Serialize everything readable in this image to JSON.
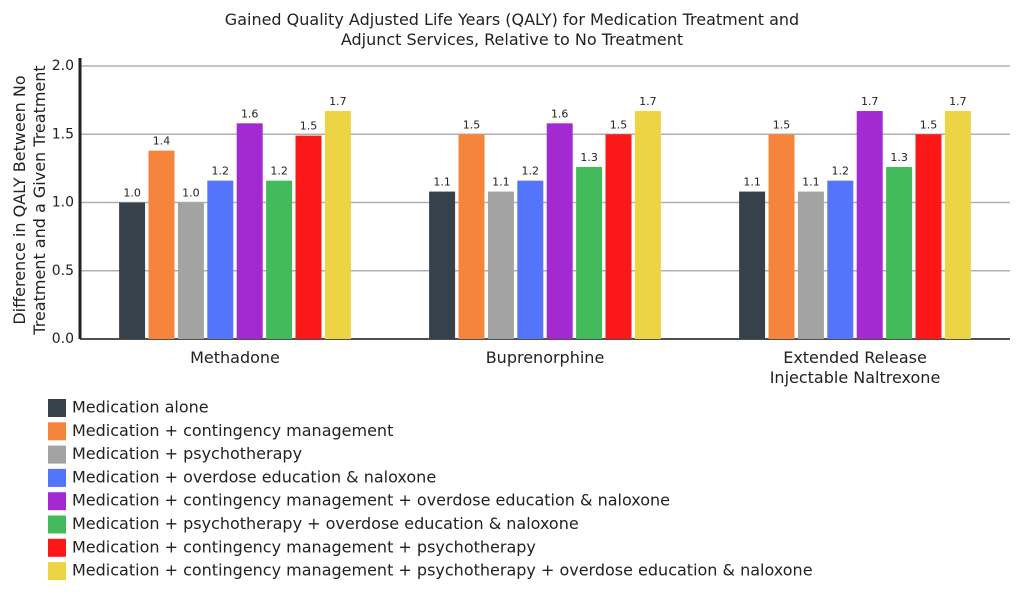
{
  "chart_data": {
    "type": "bar",
    "title": "Gained Quality Adjusted Life Years (QALY) for Medication Treatment and Adjunct Services, Relative to No Treatment",
    "y_label": "Difference in QALY Between No Treatment and a Given Treatment",
    "categories": [
      "Methadone",
      "Buprenorphine",
      "Extended Release Injectable Naltrexone"
    ],
    "ylim": [
      0,
      2
    ],
    "yticks": [
      {
        "value": 0,
        "label": "0.0"
      },
      0.5,
      {
        "value": 1,
        "label": "1.0"
      },
      1.5,
      {
        "value": 2,
        "label": "2.0"
      }
    ],
    "grid": true,
    "legend": "bottom",
    "series": [
      {
        "name": "Medication alone",
        "color": "#36414a",
        "values": [
          1.0,
          1.08,
          1.08
        ],
        "value_labels": [
          "1.0",
          "1.1",
          "1.1"
        ]
      },
      {
        "name": "Medication + contingency management",
        "color": "#f5843c",
        "values": [
          1.38,
          1.5,
          1.5
        ],
        "value_labels": [
          "1.4",
          "1.5",
          "1.5"
        ]
      },
      {
        "name": "Medication + psychotherapy",
        "color": "#a3a3a3",
        "values": [
          1.0,
          1.08,
          1.08
        ],
        "value_labels": [
          "1.0",
          "1.1",
          "1.1"
        ]
      },
      {
        "name": "Medication + overdose education & naloxone",
        "color": "#5474fb",
        "values": [
          1.16,
          1.16,
          1.16
        ],
        "value_labels": [
          "1.2",
          "1.2",
          "1.2"
        ]
      },
      {
        "name": "Medication + contingency management + overdose education & naloxone",
        "color": "#a22ad0",
        "values": [
          1.58,
          1.58,
          1.67
        ],
        "value_labels": [
          "1.6",
          "1.6",
          "1.7"
        ]
      },
      {
        "name": "Medication + psychotherapy + overdose education & naloxone",
        "color": "#43bb5c",
        "values": [
          1.16,
          1.26,
          1.26
        ],
        "value_labels": [
          "1.2",
          "1.3",
          "1.3"
        ]
      },
      {
        "name": "Medication + contingency management + psychotherapy",
        "color": "#fa1818",
        "values": [
          1.49,
          1.5,
          1.5
        ],
        "value_labels": [
          "1.5",
          "1.5",
          "1.5"
        ]
      },
      {
        "name": "Medication + contingency management + psychotherapy + overdose education & naloxone",
        "color": "#ecd444",
        "values": [
          1.67,
          1.67,
          1.67
        ],
        "value_labels": [
          "1.7",
          "1.7",
          "1.7"
        ]
      }
    ]
  }
}
